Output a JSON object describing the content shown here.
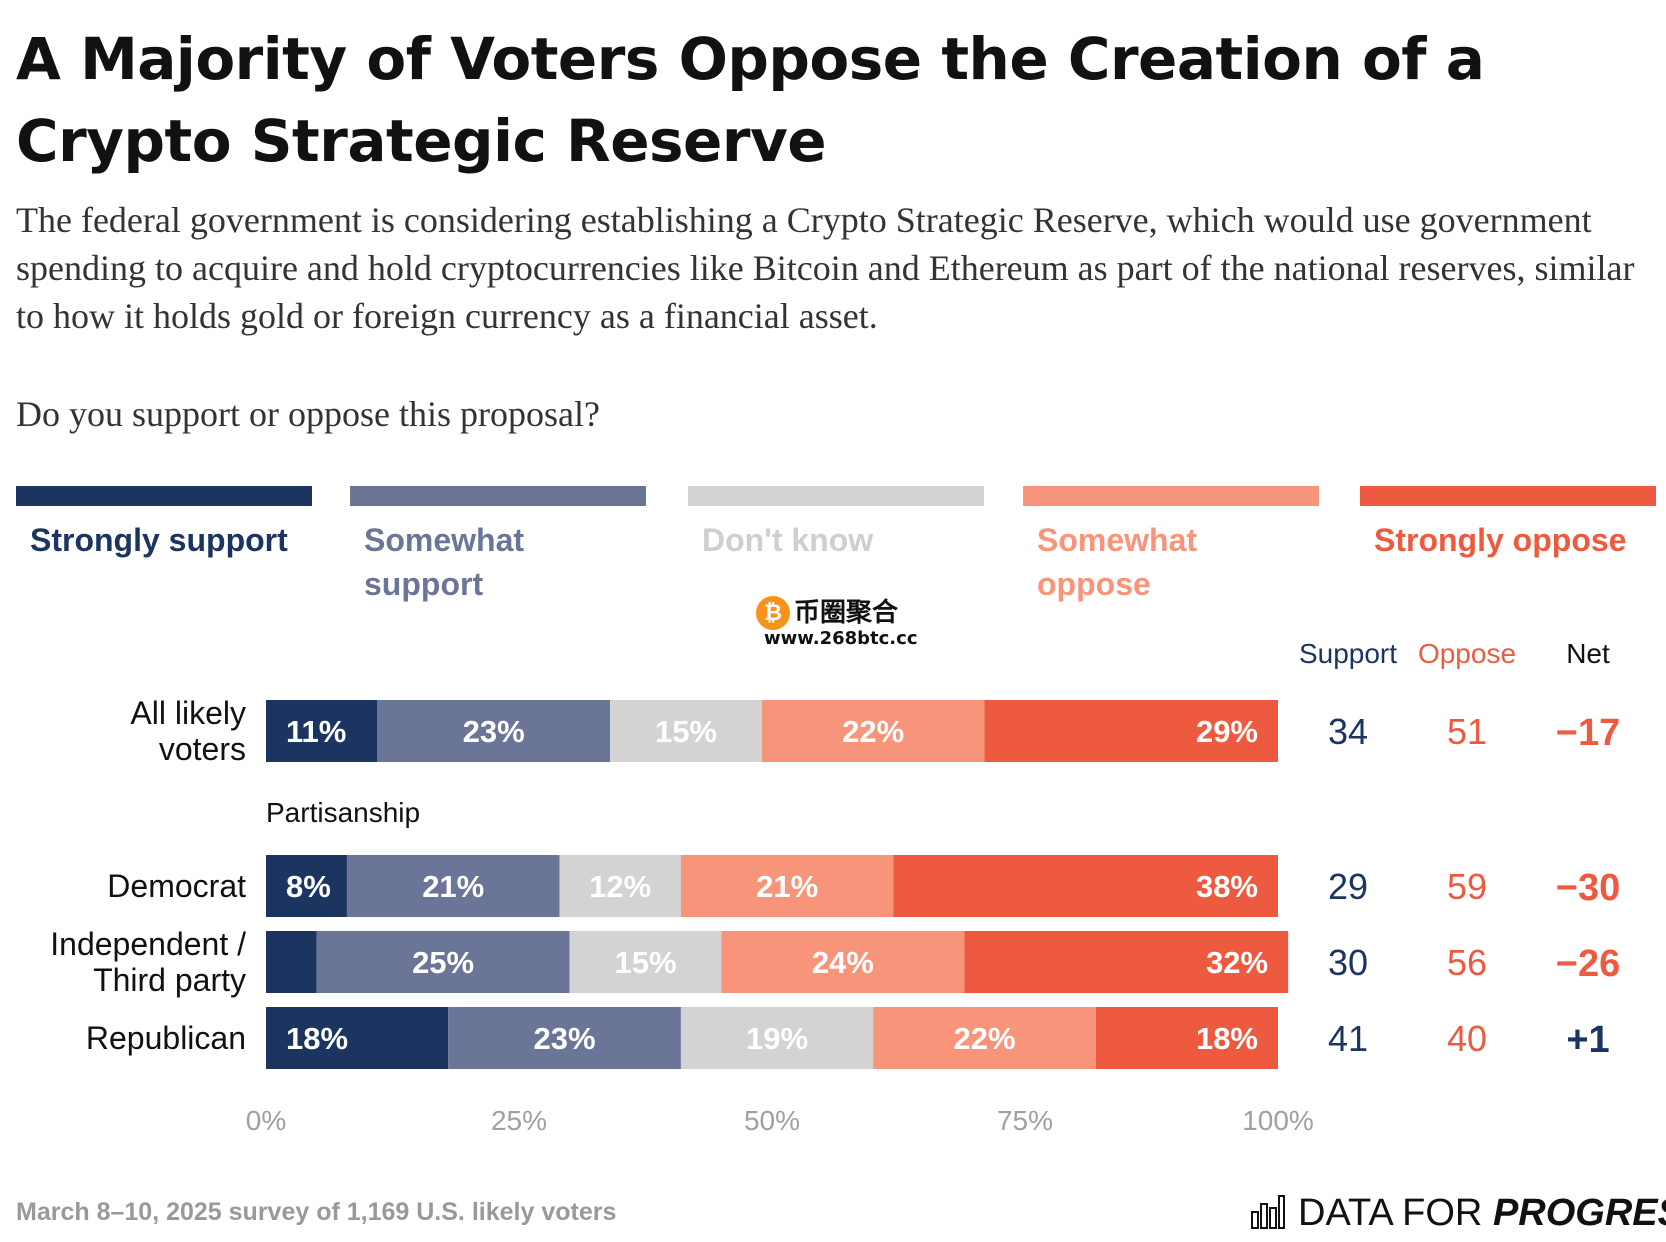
{
  "title": "A Majority of Voters Oppose the Creation of a Crypto Strategic Reserve",
  "subtitle": "The federal government is considering establishing a Crypto Strategic Reserve, which would use government spending to acquire and hold cryptocurrencies like Bitcoin and Ethereum as part of the national reserves, similar to how it holds gold or foreign currency as a financial asset.",
  "question": "Do you support or oppose this proposal?",
  "legend": [
    {
      "label": "Strongly support",
      "color": "#1c3560",
      "text_color": "#1c3560"
    },
    {
      "label": "Somewhat support",
      "color": "#6b7597",
      "text_color": "#6b7597"
    },
    {
      "label": "Don't know",
      "color": "#d3d3d3",
      "text_color": "#cfcfcf"
    },
    {
      "label": "Somewhat oppose",
      "color": "#f7947a",
      "text_color": "#f7947a"
    },
    {
      "label": "Strongly oppose",
      "color": "#ee5a3f",
      "text_color": "#ee5a3f"
    }
  ],
  "watermark": {
    "name": "币圈聚合",
    "url": "www.268btc.cc"
  },
  "chart_data": {
    "type": "bar",
    "orientation": "horizontal",
    "stacked": true,
    "xlim": [
      0,
      100
    ],
    "xticks": [
      "0%",
      "25%",
      "50%",
      "75%",
      "100%"
    ],
    "section_label": "Partisanship",
    "summary_headers": {
      "support": "Support",
      "oppose": "Oppose",
      "net": "Net"
    },
    "series_names": [
      "Strongly support",
      "Somewhat support",
      "Don't know",
      "Somewhat oppose",
      "Strongly oppose"
    ],
    "rows": [
      {
        "label_lines": [
          "All likely",
          "voters"
        ],
        "values": [
          11,
          23,
          15,
          22,
          29
        ],
        "labels": [
          "11%",
          "23%",
          "15%",
          "22%",
          "29%"
        ],
        "support": "34",
        "oppose": "51",
        "net": "−17"
      },
      {
        "label_lines": [
          "Democrat"
        ],
        "values": [
          8,
          21,
          12,
          21,
          38
        ],
        "labels": [
          "8%",
          "21%",
          "12%",
          "21%",
          "38%"
        ],
        "support": "29",
        "oppose": "59",
        "net": "−30"
      },
      {
        "label_lines": [
          "Independent /",
          "Third party"
        ],
        "values": [
          5,
          25,
          15,
          24,
          32
        ],
        "labels": [
          "",
          "25%",
          "15%",
          "24%",
          "32%"
        ],
        "support": "30",
        "oppose": "56",
        "net": "−26"
      },
      {
        "label_lines": [
          "Republican"
        ],
        "values": [
          18,
          23,
          19,
          22,
          18
        ],
        "labels": [
          "18%",
          "23%",
          "19%",
          "22%",
          "18%"
        ],
        "support": "41",
        "oppose": "40",
        "net": "+1"
      }
    ]
  },
  "footnote": "March 8–10, 2025 survey of 1,169 U.S. likely voters",
  "brand": {
    "part1": "DATA FOR ",
    "part2": "PROGRESS"
  }
}
